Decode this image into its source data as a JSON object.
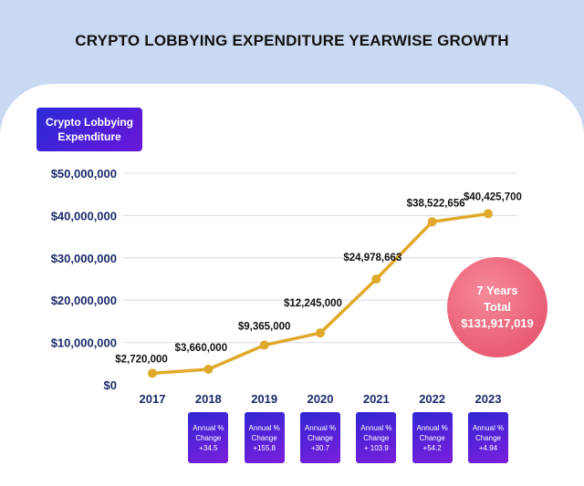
{
  "title": "CRYPTO LOBBYING EXPENDITURE YEARWISE GROWTH",
  "legend": {
    "line1": "Crypto Lobbying",
    "line2": "Expenditure"
  },
  "total": {
    "line1": "7 Years",
    "line2": "Total",
    "value": "$131,917,019"
  },
  "colors": {
    "header_bg": "#c9d9f1",
    "line": "#e0a92a",
    "axis_text": "#1b2a6b",
    "legend_bg": "#4a22d6",
    "circle": "#ea5d74"
  },
  "chart_data": {
    "type": "line",
    "title": "CRYPTO LOBBYING EXPENDITURE YEARWISE GROWTH",
    "xlabel": "",
    "ylabel": "",
    "ylim": [
      0,
      50000000
    ],
    "grid": true,
    "categories": [
      "2017",
      "2018",
      "2019",
      "2020",
      "2021",
      "2022",
      "2023"
    ],
    "yticks": [
      0,
      10000000,
      20000000,
      30000000,
      40000000,
      50000000
    ],
    "ytick_labels": [
      "$0",
      "$10,000,000",
      "$20,000,000",
      "$30,000,000",
      "$40,000,000",
      "$50,000,000"
    ],
    "series": [
      {
        "name": "Crypto Lobbying Expenditure",
        "values": [
          2720000,
          3660000,
          9365000,
          12245000,
          24978663,
          38522656,
          40425700
        ],
        "labels": [
          "$2,720,000",
          "$3,660,000",
          "$9,365,000",
          "$12,245,000",
          "$24,978,663",
          "$38,522,656",
          "$40,425,700"
        ]
      }
    ],
    "annual_change": {
      "header": [
        "Annual %",
        "Change"
      ],
      "values": [
        "+34.5",
        "+155.8",
        "+30.7",
        "+ 103.9",
        "+54.2",
        "+4.94"
      ]
    }
  }
}
